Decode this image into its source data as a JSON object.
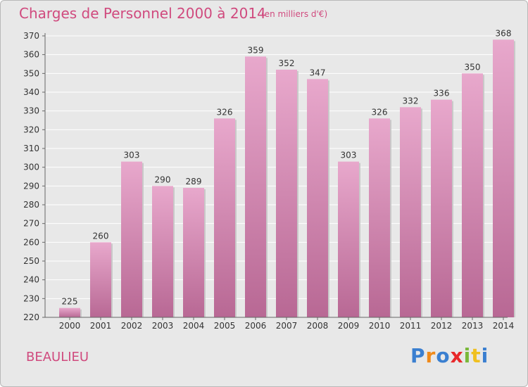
{
  "header": {
    "title": "Charges de Personnel 2000 à 2014",
    "subtitle": "(en milliers d'€)"
  },
  "footer": {
    "town": "BEAULIEU",
    "logo": {
      "letters": [
        "P",
        "r",
        "o",
        "x",
        "i",
        "t",
        "i"
      ],
      "colors": [
        "#3a7fd0",
        "#f08a1a",
        "#3a7fd0",
        "#e8282a",
        "#7ab83a",
        "#f0c020",
        "#3a7fd0"
      ]
    }
  },
  "chart_data": {
    "type": "bar",
    "title": "Charges de Personnel 2000 à 2014",
    "subtitle": "(en milliers d'€)",
    "categories": [
      "2000",
      "2001",
      "2002",
      "2003",
      "2004",
      "2005",
      "2006",
      "2007",
      "2008",
      "2009",
      "2010",
      "2011",
      "2012",
      "2013",
      "2014"
    ],
    "values": [
      225,
      260,
      303,
      290,
      289,
      326,
      359,
      352,
      347,
      303,
      326,
      332,
      336,
      350,
      368
    ],
    "ylim": [
      220,
      370
    ],
    "yticks": [
      220,
      230,
      240,
      250,
      260,
      270,
      280,
      290,
      300,
      310,
      320,
      330,
      340,
      350,
      360,
      370
    ],
    "grid": true,
    "colors": {
      "bar_light": "#e8a8cc",
      "bar_dark": "#b86894",
      "text": "#d04a7e",
      "plot_bg": "#e8e8e8"
    }
  }
}
